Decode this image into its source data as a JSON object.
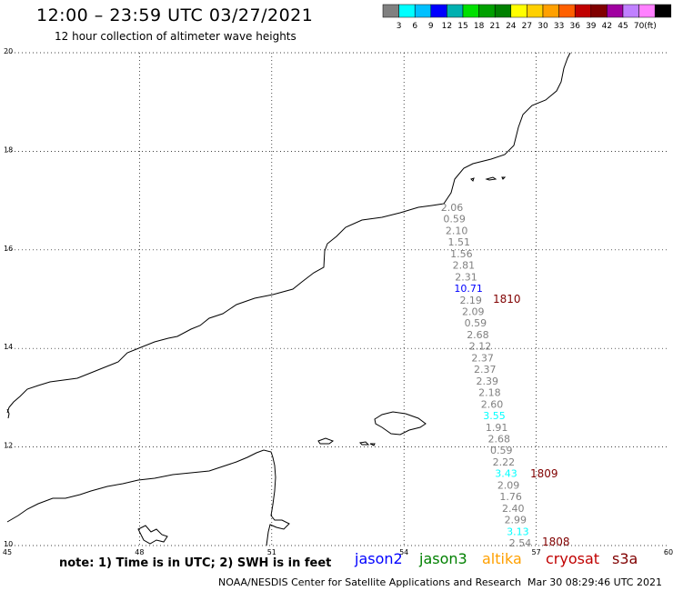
{
  "header": {
    "title": "12:00 – 23:59 UTC 03/27/2021",
    "subtitle": "12 hour collection of altimeter wave heights"
  },
  "legend": {
    "unit": "(ft)",
    "colors": [
      "#808080",
      "#00ffff",
      "#00c0ff",
      "#0000ff",
      "#00b0b0",
      "#00e000",
      "#00a000",
      "#008000",
      "#ffff00",
      "#ffd000",
      "#ffa000",
      "#ff6000",
      "#c00000",
      "#800000",
      "#a000a0",
      "#c080ff",
      "#ff80ff",
      "#000000"
    ],
    "labels": [
      "3",
      "6",
      "9",
      "12",
      "15",
      "18",
      "21",
      "24",
      "27",
      "30",
      "33",
      "36",
      "39",
      "42",
      "45",
      "70"
    ]
  },
  "axes": {
    "x_labels": [
      "45",
      "48",
      "51",
      "54",
      "57",
      "60"
    ],
    "y_labels": [
      "20",
      "18",
      "16",
      "14",
      "12",
      "10"
    ]
  },
  "track_labels": [
    {
      "text": "1810",
      "color": "#800000"
    },
    {
      "text": "1809",
      "color": "#800000"
    },
    {
      "text": "1808",
      "color": "#800000"
    }
  ],
  "wave_heights": [
    {
      "v": "2.06",
      "c": "#808080"
    },
    {
      "v": "0.59",
      "c": "#808080"
    },
    {
      "v": "2.10",
      "c": "#808080"
    },
    {
      "v": "1.51",
      "c": "#808080"
    },
    {
      "v": "1.56",
      "c": "#808080"
    },
    {
      "v": "2.81",
      "c": "#808080"
    },
    {
      "v": "2.31",
      "c": "#808080"
    },
    {
      "v": "10.71",
      "c": "#0000ff"
    },
    {
      "v": "2.19",
      "c": "#808080"
    },
    {
      "v": "2.09",
      "c": "#808080"
    },
    {
      "v": "0.59",
      "c": "#808080"
    },
    {
      "v": "2.68",
      "c": "#808080"
    },
    {
      "v": "2.12",
      "c": "#808080"
    },
    {
      "v": "2.37",
      "c": "#808080"
    },
    {
      "v": "2.37",
      "c": "#808080"
    },
    {
      "v": "2.39",
      "c": "#808080"
    },
    {
      "v": "2.18",
      "c": "#808080"
    },
    {
      "v": "2.60",
      "c": "#808080"
    },
    {
      "v": "3.55",
      "c": "#00ffff"
    },
    {
      "v": "1.91",
      "c": "#808080"
    },
    {
      "v": "2.68",
      "c": "#808080"
    },
    {
      "v": "0.59",
      "c": "#808080"
    },
    {
      "v": "2.22",
      "c": "#808080"
    },
    {
      "v": "3.43",
      "c": "#00ffff"
    },
    {
      "v": "2.09",
      "c": "#808080"
    },
    {
      "v": "1.76",
      "c": "#808080"
    },
    {
      "v": "2.40",
      "c": "#808080"
    },
    {
      "v": "2.99",
      "c": "#808080"
    },
    {
      "v": "3.13",
      "c": "#00ffff"
    },
    {
      "v": "2.54",
      "c": "#808080"
    }
  ],
  "footer": {
    "note": "note: 1) Time is in UTC; 2) SWH is in feet",
    "satellites": [
      {
        "name": "jason2",
        "color": "#0000ff"
      },
      {
        "name": "jason3",
        "color": "#008000"
      },
      {
        "name": "altika",
        "color": "#ffa000"
      },
      {
        "name": "cryosat",
        "color": "#c00000"
      },
      {
        "name": "s3a",
        "color": "#800000"
      }
    ],
    "credit": "NOAA/NESDIS Center for Satellite Applications and Research",
    "timestamp": "Mar 30 08:29:46 UTC 2021"
  }
}
